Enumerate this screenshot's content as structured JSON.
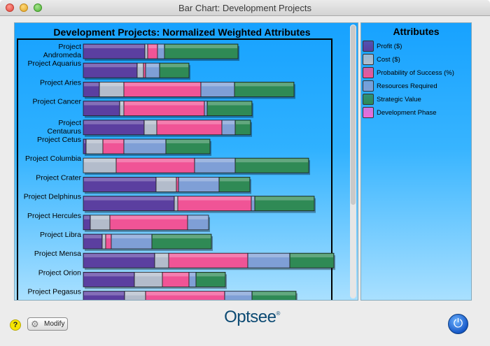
{
  "window": {
    "title": "Bar Chart: Development Projects"
  },
  "chart_data": {
    "type": "bar",
    "orientation": "horizontal",
    "stacked": true,
    "title": "Development Projects: Normalized Weighted Attributes",
    "categories": [
      "Project Andromeda",
      "Project Aquarius",
      "Project Aries",
      "Project Cancer",
      "Project Centaurus",
      "Project Cetus",
      "Project Columbia",
      "Project Crater",
      "Project Delphinus",
      "Project Hercules",
      "Project Libra",
      "Project Mensa",
      "Project Orion",
      "Project Pegasus"
    ],
    "category_lines": [
      [
        "Project",
        "Andromeda"
      ],
      [
        "Project Aquarius"
      ],
      [
        "Project Aries"
      ],
      [
        "Project Cancer"
      ],
      [
        "Project",
        "Centaurus"
      ],
      [
        "Project Cetus"
      ],
      [
        "Project Columbia"
      ],
      [
        "Project Crater"
      ],
      [
        "Project Delphinus"
      ],
      [
        "Project Hercules"
      ],
      [
        "Project Libra"
      ],
      [
        "Project Mensa"
      ],
      [
        "Project Orion"
      ],
      [
        "Project Pegasus"
      ]
    ],
    "series": [
      {
        "name": "Profit ($)",
        "color": "#5b3fa0",
        "values": [
          88,
          77,
          23,
          52,
          87,
          4,
          0,
          104,
          130,
          10,
          27,
          102,
          73,
          59
        ]
      },
      {
        "name": "Cost ($)",
        "color": "#b3bccb",
        "values": [
          4,
          9,
          35,
          6,
          18,
          24,
          47,
          29,
          5,
          28,
          5,
          20,
          40,
          30
        ]
      },
      {
        "name": "Probability of Success (%)",
        "color": "#f05496",
        "values": [
          14,
          3,
          110,
          115,
          93,
          30,
          112,
          3,
          105,
          111,
          8,
          113,
          38,
          113
        ]
      },
      {
        "name": "Resources Required",
        "color": "#7f9fd6",
        "values": [
          10,
          20,
          48,
          4,
          19,
          60,
          58,
          58,
          5,
          30,
          58,
          60,
          10,
          39
        ]
      },
      {
        "name": "Strategic Value",
        "color": "#2f8a55",
        "values": [
          105,
          42,
          85,
          64,
          22,
          63,
          105,
          44,
          85,
          0,
          85,
          63,
          42,
          63
        ]
      },
      {
        "name": "Development Phase",
        "color": "#f06ad8",
        "values": [
          0,
          0,
          0,
          0,
          0,
          0,
          0,
          0,
          0,
          0,
          0,
          0,
          0,
          0
        ]
      }
    ],
    "xlim": [
      0,
      360
    ],
    "grid": false,
    "legend_position": "right"
  },
  "legend": {
    "title": "Attributes",
    "items": [
      {
        "label": "Profit ($)",
        "color": "#5b3fa0"
      },
      {
        "label": "Cost ($)",
        "color": "#b3bccb"
      },
      {
        "label": "Probability of Success (%)",
        "color": "#f05496"
      },
      {
        "label": "Resources Required",
        "color": "#7f9fd6"
      },
      {
        "label": "Strategic Value",
        "color": "#2f8a55"
      },
      {
        "label": "Development Phase",
        "color": "#f06ad8"
      }
    ]
  },
  "footer": {
    "help_label": "?",
    "modify_label": "Modify",
    "brand": "Optsee",
    "brand_mark": "®"
  },
  "icons": {
    "help": "help-icon",
    "modify": "gear-icon",
    "power": "power-icon"
  }
}
